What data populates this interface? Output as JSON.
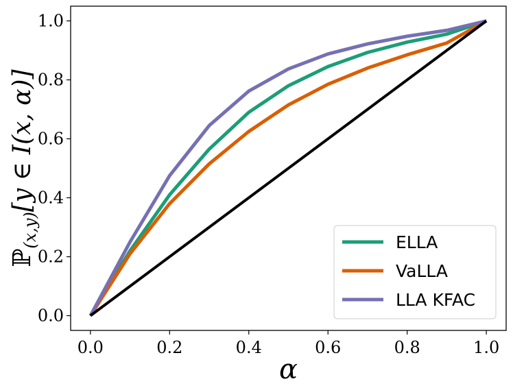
{
  "chart_data": {
    "type": "line",
    "title": "",
    "xlabel": "α",
    "ylabel": "ℙ(x,y)[y ∈ I(x, α)]",
    "xlim": [
      -0.05,
      1.05
    ],
    "ylim": [
      -0.05,
      1.05
    ],
    "xticks": [
      "0.0",
      "0.2",
      "0.4",
      "0.6",
      "0.8",
      "1.0"
    ],
    "yticks": [
      "0.0",
      "0.2",
      "0.4",
      "0.6",
      "0.8",
      "1.0"
    ],
    "grid": false,
    "legend_position": "bottom-right",
    "x": [
      0.0,
      0.1,
      0.2,
      0.3,
      0.4,
      0.5,
      0.6,
      0.7,
      0.8,
      0.9,
      1.0
    ],
    "series": [
      {
        "name": "ELLA",
        "color": "#1b9e77",
        "values": [
          0.0,
          0.22,
          0.41,
          0.565,
          0.69,
          0.78,
          0.845,
          0.893,
          0.928,
          0.955,
          1.0
        ]
      },
      {
        "name": "VaLLA",
        "color": "#d95f02",
        "values": [
          0.0,
          0.21,
          0.38,
          0.515,
          0.625,
          0.715,
          0.785,
          0.84,
          0.885,
          0.925,
          1.0
        ]
      },
      {
        "name": "LLA KFAC",
        "color": "#7570b3",
        "values": [
          0.0,
          0.25,
          0.475,
          0.645,
          0.762,
          0.837,
          0.888,
          0.922,
          0.948,
          0.968,
          1.0
        ]
      }
    ],
    "reference_line": {
      "name": "diagonal",
      "color": "#000000",
      "x": [
        0.0,
        1.0
      ],
      "values": [
        0.0,
        1.0
      ]
    }
  }
}
